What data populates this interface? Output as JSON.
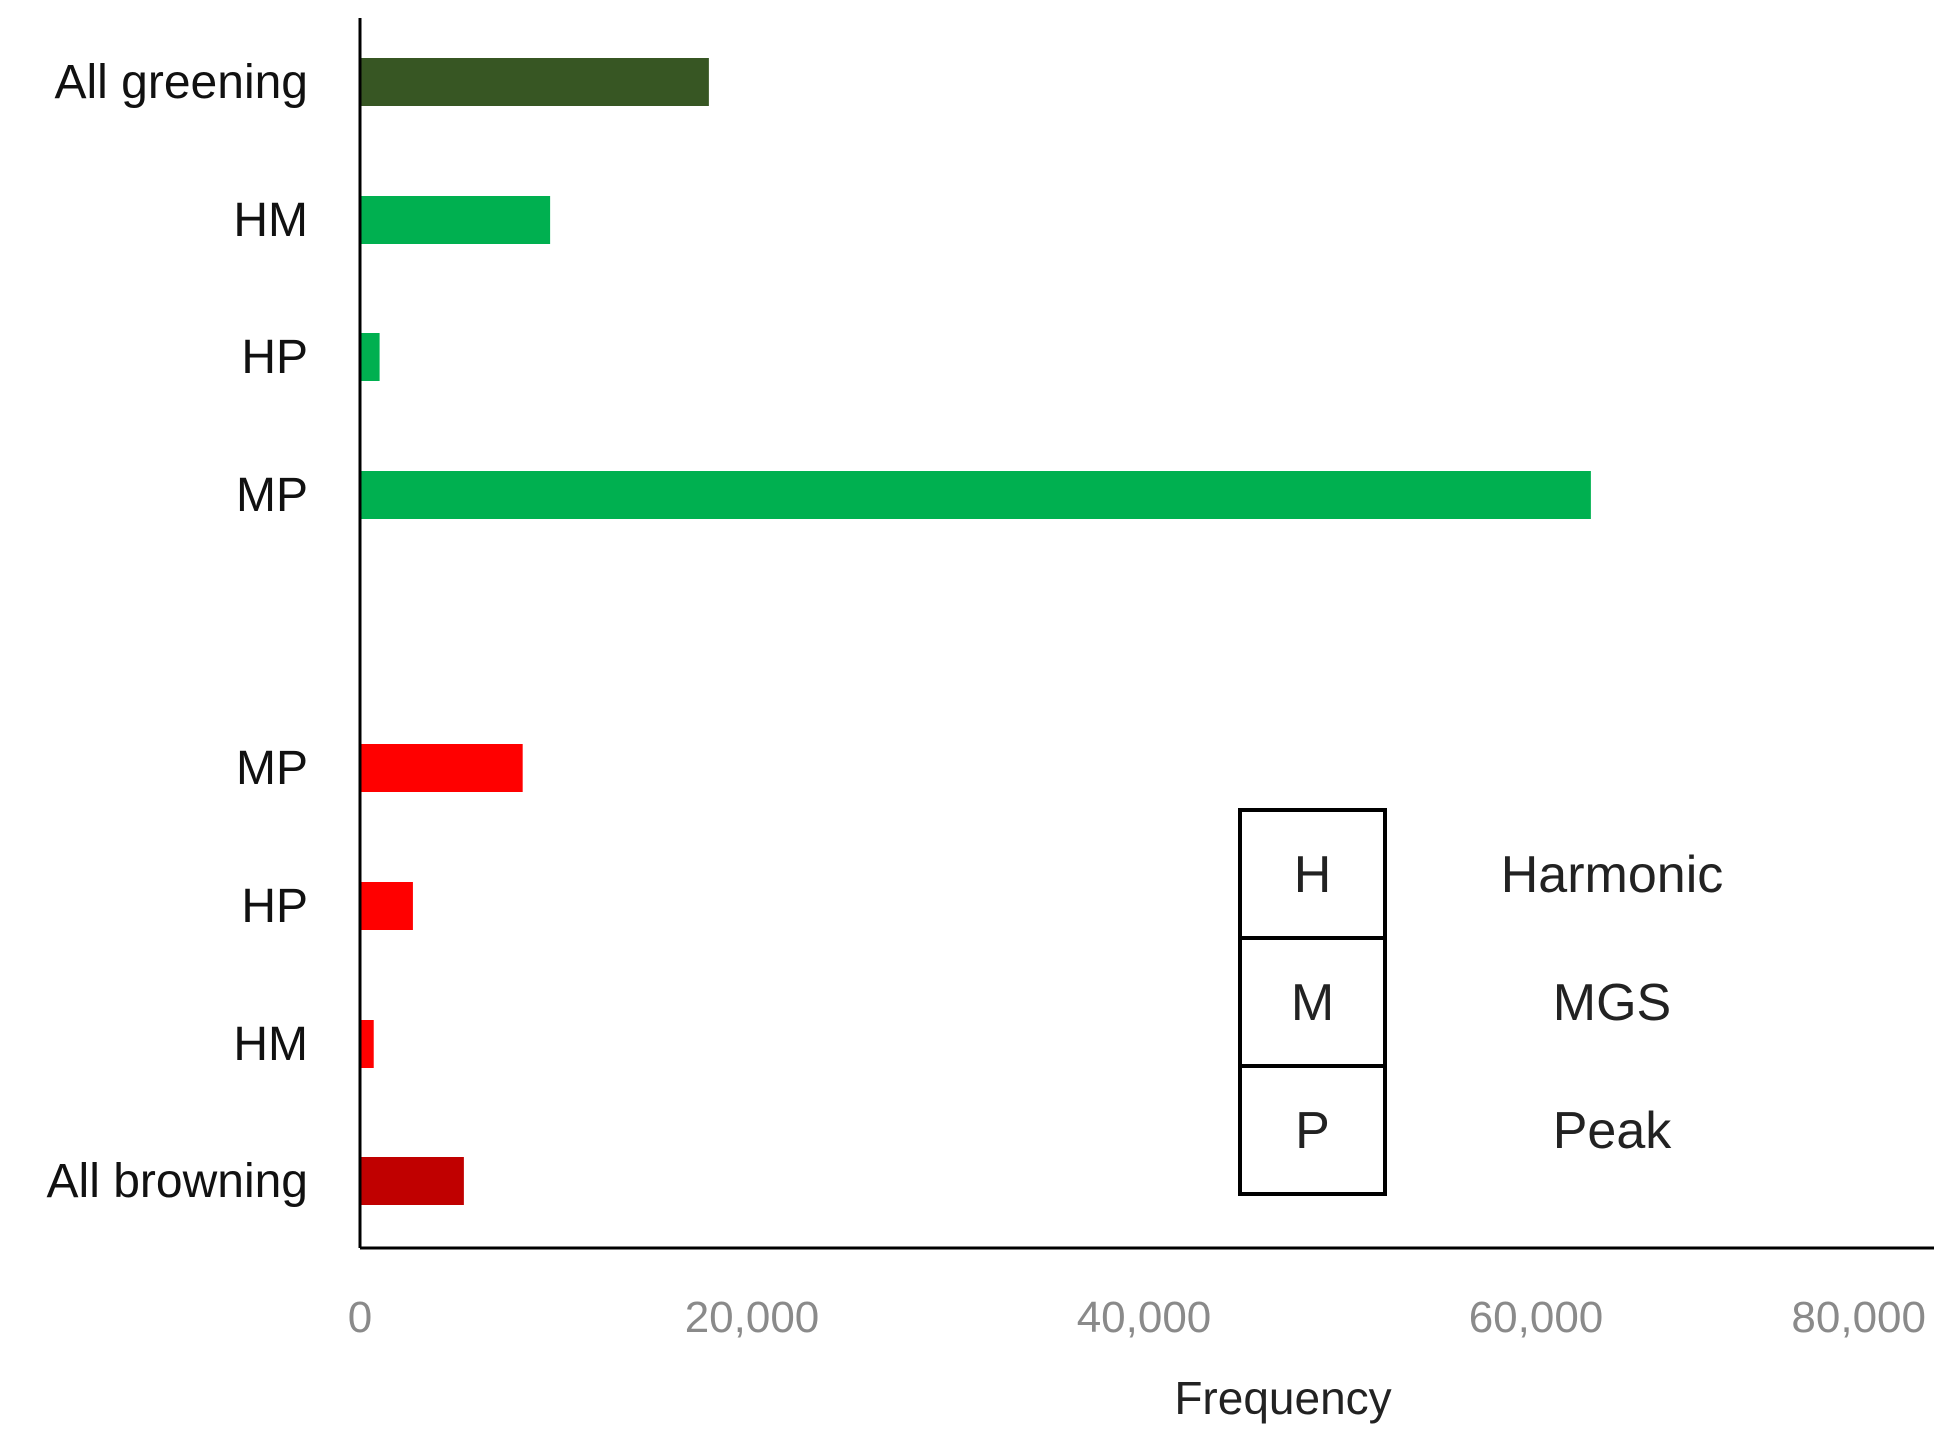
{
  "chart_data": {
    "type": "bar",
    "orientation": "horizontal",
    "categories": [
      "All greening",
      "HM",
      "HP",
      "MP",
      "MP",
      "HP",
      "HM",
      "All browning"
    ],
    "values": [
      17800,
      9700,
      1000,
      62800,
      8300,
      2700,
      700,
      5300
    ],
    "colors": [
      "#375623",
      "#00b050",
      "#00b050",
      "#00b050",
      "#ff0000",
      "#ff0000",
      "#ff0000",
      "#c00000"
    ],
    "xlabel": "Frequency",
    "ylabel": "",
    "xlim": [
      0,
      80000
    ],
    "xticks": [
      "0",
      "20,000",
      "40,000",
      "60,000",
      "80,000"
    ],
    "grid": false,
    "legend": {
      "placement": "bottom-right",
      "entries": [
        {
          "key": "H",
          "label": "Harmonic"
        },
        {
          "key": "M",
          "label": "MGS"
        },
        {
          "key": "P",
          "label": "Peak"
        }
      ]
    }
  }
}
